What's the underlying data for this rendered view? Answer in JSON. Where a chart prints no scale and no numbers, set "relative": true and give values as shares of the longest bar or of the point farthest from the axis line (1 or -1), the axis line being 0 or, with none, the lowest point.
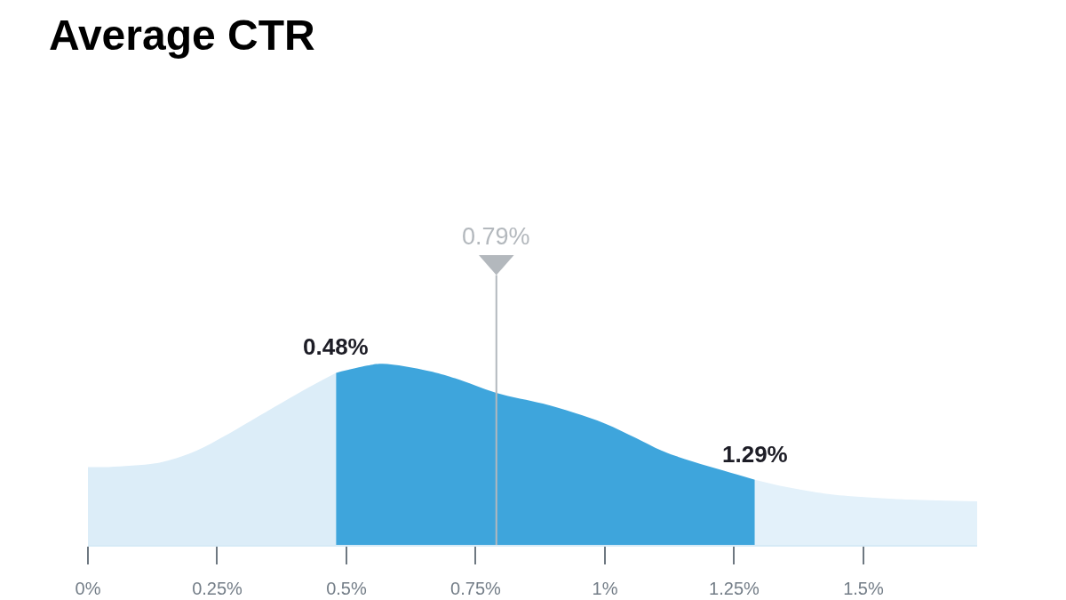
{
  "chart_data": {
    "type": "area",
    "title": "Average CTR",
    "relative": true,
    "tick_labels": "x",
    "xlim": [
      0,
      1.72
    ],
    "xticks": [
      {
        "value": 0,
        "label": "0%"
      },
      {
        "value": 0.25,
        "label": "0.25%"
      },
      {
        "value": 0.5,
        "label": "0.5%"
      },
      {
        "value": 0.75,
        "label": "0.75%"
      },
      {
        "value": 1,
        "label": "1%"
      },
      {
        "value": 1.25,
        "label": "1.25%"
      },
      {
        "value": 1.5,
        "label": "1.5%"
      }
    ],
    "series": [
      {
        "color": "#dcedf8",
        "x": [
          0,
          0.04,
          0.13,
          0.16,
          0.21,
          0.27,
          0.33,
          0.39,
          0.44,
          0.48
        ],
        "values": [
          0.43,
          0.43,
          0.45,
          0.47,
          0.52,
          0.61,
          0.71,
          0.81,
          0.89,
          0.95
        ]
      },
      {
        "color": "#3ea5dc",
        "x": [
          0.48,
          0.54,
          0.57,
          0.66,
          0.71,
          0.79,
          0.88,
          0.94,
          1.0,
          1.06,
          1.11,
          1.17,
          1.23,
          1.29
        ],
        "values": [
          0.95,
          0.99,
          1.0,
          0.96,
          0.92,
          0.84,
          0.78,
          0.73,
          0.67,
          0.59,
          0.52,
          0.46,
          0.41,
          0.36
        ]
      },
      {
        "color": "#e3f1fa",
        "x": [
          1.29,
          1.35,
          1.41,
          1.47,
          1.59,
          1.72
        ],
        "values": [
          0.36,
          0.32,
          0.29,
          0.27,
          0.25,
          0.24
        ]
      }
    ],
    "annotations": [
      {
        "text": "0.48%",
        "x": 0.48,
        "y": 0.95
      },
      {
        "text": "1.29%",
        "x": 1.29,
        "y": 0.36
      }
    ],
    "ref_lines": [
      {
        "axis": "x",
        "value": 0.79,
        "label": "0.79%",
        "color": "#b3b8bd"
      }
    ]
  }
}
